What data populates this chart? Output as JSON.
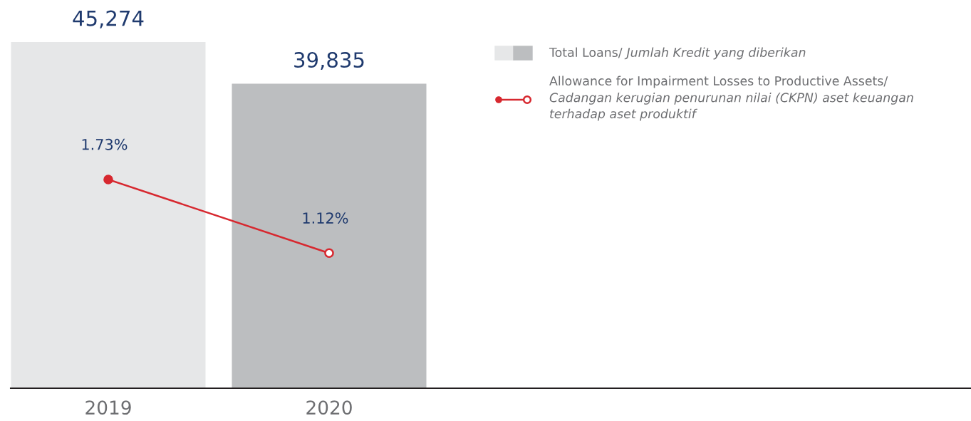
{
  "chart_data": {
    "type": "bar",
    "categories": [
      "2019",
      "2020"
    ],
    "series": [
      {
        "name": "Total Loans/ Jumlah Kredit yang diberikan",
        "colors": [
          "#e6e7e8",
          "#bcbec0"
        ],
        "values": [
          45274,
          39835
        ],
        "value_labels": [
          "45,274",
          "39,835"
        ]
      },
      {
        "name": "Allowance for Impairment Losses to Productive Assets/ Cadangan kerugian penurunan nilai (CKPN) aset keuangan terhadap aset produktif",
        "type": "line",
        "axis": "y2",
        "color": "#d7282f",
        "marker": "circle",
        "values": [
          1.73,
          1.12
        ],
        "value_labels": [
          "1.73%",
          "1.12%"
        ]
      }
    ],
    "legend": "right",
    "grid": false,
    "tick_labels": "x"
  }
}
